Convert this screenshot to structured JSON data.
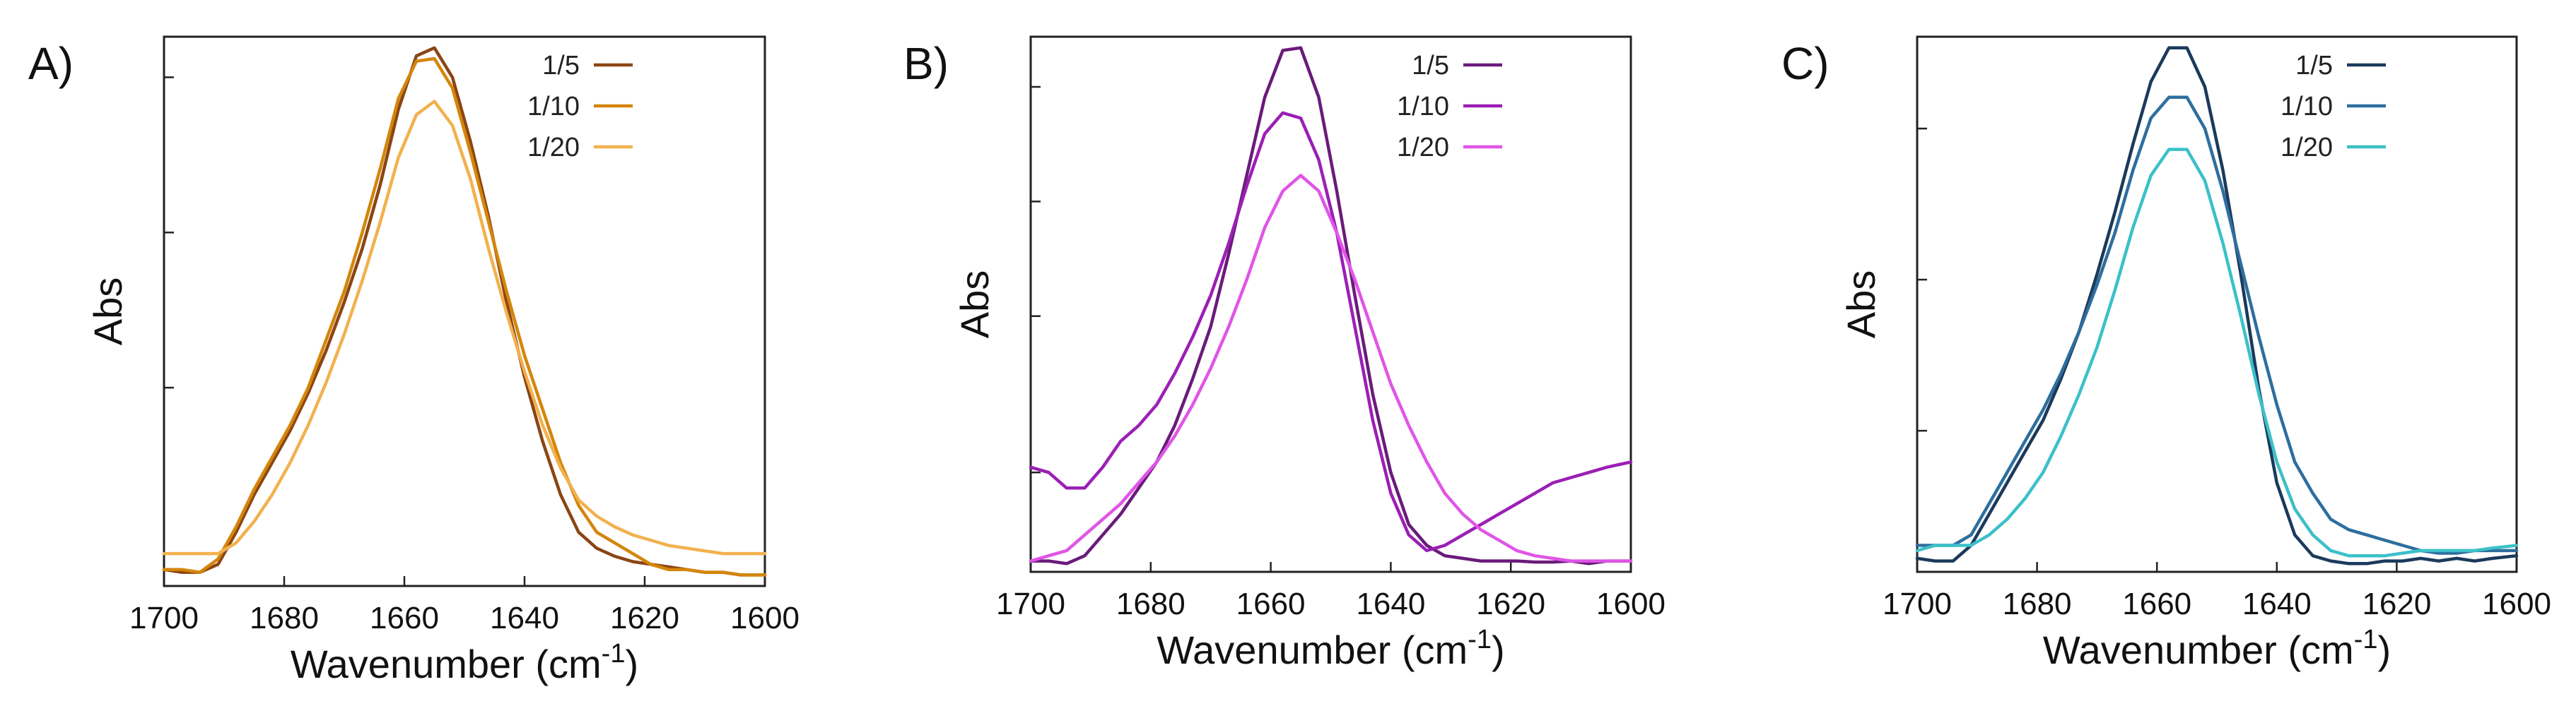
{
  "figure": {
    "panels": [
      "A)",
      "B)",
      "C)"
    ]
  },
  "chart_data": [
    {
      "type": "line",
      "panel_label": "A)",
      "xlabel": "Wavenumber",
      "xlabel_unit_base": "(cm",
      "xlabel_unit_exp": "-1",
      "xlabel_unit_close": ")",
      "ylabel": "Abs",
      "xlim": [
        1700,
        1600
      ],
      "ylim": [
        0,
        1
      ],
      "xticks": [
        1700,
        1680,
        1660,
        1640,
        1620,
        1600
      ],
      "xtick_labels": [
        "1700",
        "1680",
        "1660",
        "1640",
        "1620",
        "1600"
      ],
      "yticks": [
        0.36,
        0.65,
        0.94
      ],
      "series": [
        {
          "name": "1/5",
          "color": "#8B4513",
          "x": [
            1700,
            1697,
            1694,
            1691,
            1688,
            1685,
            1682,
            1679,
            1676,
            1673,
            1670,
            1667,
            1664,
            1661,
            1658,
            1655,
            1652,
            1649,
            1646,
            1643,
            1640,
            1637,
            1634,
            1631,
            1628,
            1625,
            1622,
            1619,
            1616,
            1613,
            1610,
            1607,
            1604,
            1600
          ],
          "y": [
            0.02,
            0.015,
            0.015,
            0.03,
            0.09,
            0.16,
            0.22,
            0.28,
            0.35,
            0.43,
            0.52,
            0.62,
            0.74,
            0.88,
            0.98,
            0.995,
            0.94,
            0.82,
            0.68,
            0.52,
            0.38,
            0.26,
            0.16,
            0.09,
            0.06,
            0.045,
            0.035,
            0.03,
            0.025,
            0.02,
            0.015,
            0.015,
            0.01,
            0.01
          ]
        },
        {
          "name": "1/10",
          "color": "#D4860B",
          "x": [
            1700,
            1697,
            1694,
            1691,
            1688,
            1685,
            1682,
            1679,
            1676,
            1673,
            1670,
            1667,
            1664,
            1661,
            1658,
            1655,
            1652,
            1649,
            1646,
            1643,
            1640,
            1637,
            1634,
            1631,
            1628,
            1625,
            1622,
            1619,
            1616,
            1613,
            1610,
            1607,
            1604,
            1600
          ],
          "y": [
            0.02,
            0.02,
            0.015,
            0.04,
            0.1,
            0.17,
            0.23,
            0.29,
            0.36,
            0.45,
            0.54,
            0.65,
            0.77,
            0.9,
            0.97,
            0.975,
            0.92,
            0.8,
            0.67,
            0.54,
            0.42,
            0.32,
            0.22,
            0.14,
            0.09,
            0.07,
            0.05,
            0.03,
            0.02,
            0.02,
            0.015,
            0.015,
            0.01,
            0.01
          ]
        },
        {
          "name": "1/20",
          "color": "#F2B14E",
          "x": [
            1700,
            1697,
            1694,
            1691,
            1688,
            1685,
            1682,
            1679,
            1676,
            1673,
            1670,
            1667,
            1664,
            1661,
            1658,
            1655,
            1652,
            1649,
            1646,
            1643,
            1640,
            1637,
            1634,
            1631,
            1628,
            1625,
            1622,
            1619,
            1616,
            1613,
            1610,
            1607,
            1604,
            1600
          ],
          "y": [
            0.05,
            0.05,
            0.05,
            0.05,
            0.07,
            0.11,
            0.16,
            0.22,
            0.29,
            0.37,
            0.46,
            0.56,
            0.67,
            0.79,
            0.87,
            0.895,
            0.85,
            0.75,
            0.62,
            0.5,
            0.39,
            0.29,
            0.21,
            0.15,
            0.12,
            0.1,
            0.085,
            0.075,
            0.065,
            0.06,
            0.055,
            0.05,
            0.05,
            0.05
          ]
        }
      ]
    },
    {
      "type": "line",
      "panel_label": "B)",
      "xlabel": "Wavenumber",
      "xlabel_unit_base": "(cm",
      "xlabel_unit_exp": "-1",
      "xlabel_unit_close": ")",
      "ylabel": "Abs",
      "xlim": [
        1700,
        1600
      ],
      "ylim": [
        0,
        1
      ],
      "xticks": [
        1700,
        1680,
        1660,
        1640,
        1620,
        1600
      ],
      "xtick_labels": [
        "1700",
        "1680",
        "1660",
        "1640",
        "1620",
        "1600"
      ],
      "yticks": [
        0.18,
        0.48,
        0.7,
        0.92
      ],
      "series": [
        {
          "name": "1/5",
          "color": "#6A1B7A",
          "x": [
            1700,
            1697,
            1694,
            1691,
            1688,
            1685,
            1682,
            1679,
            1676,
            1673,
            1670,
            1667,
            1664,
            1661,
            1658,
            1655,
            1652,
            1649,
            1646,
            1643,
            1640,
            1637,
            1634,
            1631,
            1628,
            1625,
            1622,
            1619,
            1616,
            1613,
            1610,
            1607,
            1604,
            1600
          ],
          "y": [
            0.01,
            0.01,
            0.005,
            0.02,
            0.06,
            0.1,
            0.15,
            0.2,
            0.27,
            0.36,
            0.46,
            0.6,
            0.75,
            0.9,
            0.99,
            0.995,
            0.9,
            0.72,
            0.52,
            0.33,
            0.18,
            0.08,
            0.04,
            0.02,
            0.015,
            0.01,
            0.01,
            0.01,
            0.008,
            0.008,
            0.01,
            0.005,
            0.01,
            0.01
          ]
        },
        {
          "name": "1/10",
          "color": "#9B1FB5",
          "x": [
            1700,
            1697,
            1694,
            1691,
            1688,
            1685,
            1682,
            1679,
            1676,
            1673,
            1670,
            1667,
            1664,
            1661,
            1658,
            1655,
            1652,
            1649,
            1646,
            1643,
            1640,
            1637,
            1634,
            1631,
            1628,
            1625,
            1622,
            1619,
            1616,
            1613,
            1610,
            1607,
            1604,
            1600
          ],
          "y": [
            0.19,
            0.18,
            0.15,
            0.15,
            0.19,
            0.24,
            0.27,
            0.31,
            0.37,
            0.44,
            0.52,
            0.62,
            0.73,
            0.83,
            0.87,
            0.86,
            0.78,
            0.64,
            0.46,
            0.28,
            0.14,
            0.06,
            0.03,
            0.04,
            0.06,
            0.08,
            0.1,
            0.12,
            0.14,
            0.16,
            0.17,
            0.18,
            0.19,
            0.2
          ]
        },
        {
          "name": "1/20",
          "color": "#E055E6",
          "x": [
            1700,
            1697,
            1694,
            1691,
            1688,
            1685,
            1682,
            1679,
            1676,
            1673,
            1670,
            1667,
            1664,
            1661,
            1658,
            1655,
            1652,
            1649,
            1646,
            1643,
            1640,
            1637,
            1634,
            1631,
            1628,
            1625,
            1622,
            1619,
            1616,
            1613,
            1610,
            1607,
            1604,
            1600
          ],
          "y": [
            0.01,
            0.02,
            0.03,
            0.06,
            0.09,
            0.12,
            0.16,
            0.2,
            0.25,
            0.31,
            0.38,
            0.46,
            0.55,
            0.65,
            0.72,
            0.75,
            0.72,
            0.64,
            0.55,
            0.45,
            0.35,
            0.27,
            0.2,
            0.14,
            0.1,
            0.07,
            0.05,
            0.03,
            0.02,
            0.015,
            0.01,
            0.01,
            0.01,
            0.01
          ]
        }
      ]
    },
    {
      "type": "line",
      "panel_label": "C)",
      "xlabel": "Wavenumber",
      "xlabel_unit_base": "(cm",
      "xlabel_unit_exp": "-1",
      "xlabel_unit_close": ")",
      "ylabel": "Abs",
      "xlim": [
        1700,
        1600
      ],
      "ylim": [
        0,
        1
      ],
      "xticks": [
        1700,
        1680,
        1660,
        1640,
        1620,
        1600
      ],
      "xtick_labels": [
        "1700",
        "1680",
        "1660",
        "1640",
        "1620",
        "1600"
      ],
      "yticks": [
        0.26,
        0.55,
        0.84
      ],
      "series": [
        {
          "name": "1/5",
          "color": "#1B3A5C",
          "x": [
            1700,
            1697,
            1694,
            1691,
            1688,
            1685,
            1682,
            1679,
            1676,
            1673,
            1670,
            1667,
            1664,
            1661,
            1658,
            1655,
            1652,
            1649,
            1646,
            1643,
            1640,
            1637,
            1634,
            1631,
            1628,
            1625,
            1622,
            1619,
            1616,
            1613,
            1610,
            1607,
            1604,
            1600
          ],
          "y": [
            0.015,
            0.01,
            0.01,
            0.04,
            0.1,
            0.16,
            0.22,
            0.28,
            0.36,
            0.45,
            0.56,
            0.68,
            0.81,
            0.93,
            0.995,
            0.995,
            0.92,
            0.76,
            0.56,
            0.34,
            0.16,
            0.06,
            0.02,
            0.01,
            0.005,
            0.005,
            0.01,
            0.01,
            0.015,
            0.01,
            0.015,
            0.01,
            0.015,
            0.02
          ]
        },
        {
          "name": "1/10",
          "color": "#2E6E9E",
          "x": [
            1700,
            1697,
            1694,
            1691,
            1688,
            1685,
            1682,
            1679,
            1676,
            1673,
            1670,
            1667,
            1664,
            1661,
            1658,
            1655,
            1652,
            1649,
            1646,
            1643,
            1640,
            1637,
            1634,
            1631,
            1628,
            1625,
            1622,
            1619,
            1616,
            1613,
            1610,
            1607,
            1604,
            1600
          ],
          "y": [
            0.04,
            0.04,
            0.04,
            0.06,
            0.12,
            0.18,
            0.24,
            0.3,
            0.37,
            0.45,
            0.54,
            0.64,
            0.76,
            0.86,
            0.9,
            0.9,
            0.84,
            0.72,
            0.58,
            0.44,
            0.31,
            0.2,
            0.14,
            0.09,
            0.07,
            0.06,
            0.05,
            0.04,
            0.03,
            0.025,
            0.025,
            0.03,
            0.03,
            0.03
          ]
        },
        {
          "name": "1/20",
          "color": "#3CC0C8",
          "x": [
            1700,
            1697,
            1694,
            1691,
            1688,
            1685,
            1682,
            1679,
            1676,
            1673,
            1670,
            1667,
            1664,
            1661,
            1658,
            1655,
            1652,
            1649,
            1646,
            1643,
            1640,
            1637,
            1634,
            1631,
            1628,
            1625,
            1622,
            1619,
            1616,
            1613,
            1610,
            1607,
            1604,
            1600
          ],
          "y": [
            0.03,
            0.04,
            0.04,
            0.04,
            0.06,
            0.09,
            0.13,
            0.18,
            0.25,
            0.33,
            0.42,
            0.53,
            0.65,
            0.75,
            0.8,
            0.8,
            0.74,
            0.62,
            0.48,
            0.33,
            0.2,
            0.11,
            0.06,
            0.03,
            0.02,
            0.02,
            0.02,
            0.025,
            0.03,
            0.03,
            0.03,
            0.03,
            0.035,
            0.04
          ]
        }
      ]
    }
  ]
}
